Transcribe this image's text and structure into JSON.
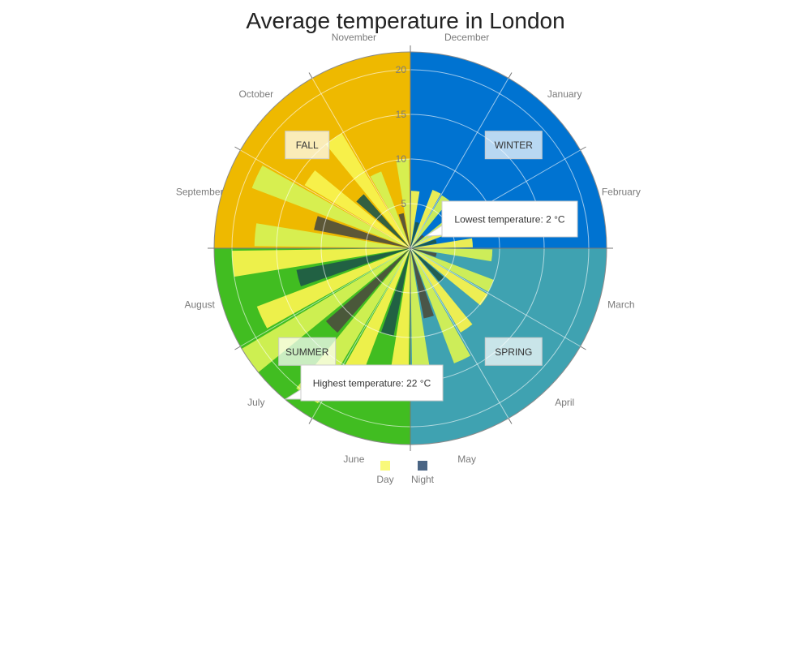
{
  "title": "Average temperature in London",
  "chart_data": {
    "type": "polar-bar",
    "title": "Average temperature in London",
    "months": [
      "December",
      "January",
      "February",
      "March",
      "April",
      "May",
      "June",
      "July",
      "August",
      "September",
      "October",
      "November"
    ],
    "seasons": [
      {
        "name": "WINTER",
        "color": "#0073d1"
      },
      {
        "name": "SPRING",
        "color": "#3fa2b1"
      },
      {
        "name": "SUMMER",
        "color": "#41bd21"
      },
      {
        "name": "FALL",
        "color": "#eeb900"
      }
    ],
    "radial_ticks": [
      5,
      10,
      15,
      20
    ],
    "radial_max": 22,
    "series": [
      {
        "name": "Day",
        "colors": [
          "#f7f24e",
          "#d5f154"
        ],
        "values": [
          7,
          7.5,
          7,
          10,
          11,
          15,
          17.5,
          22,
          20,
          19,
          15,
          10
        ]
      },
      {
        "name": "Night",
        "colors": [
          "#4b4c3d",
          "#1e5747"
        ],
        "values": [
          3,
          2,
          3,
          3,
          5,
          8,
          10,
          12.5,
          13,
          11,
          8,
          4
        ]
      }
    ],
    "annotations": [
      {
        "text": "Lowest temperature: 2 °C"
      },
      {
        "text": "Highest temperature: 22 °C"
      }
    ],
    "legend": {
      "position": "bottom",
      "items": [
        "Day",
        "Night"
      ],
      "colors": [
        "#f9f97a",
        "#4a6584"
      ]
    }
  }
}
